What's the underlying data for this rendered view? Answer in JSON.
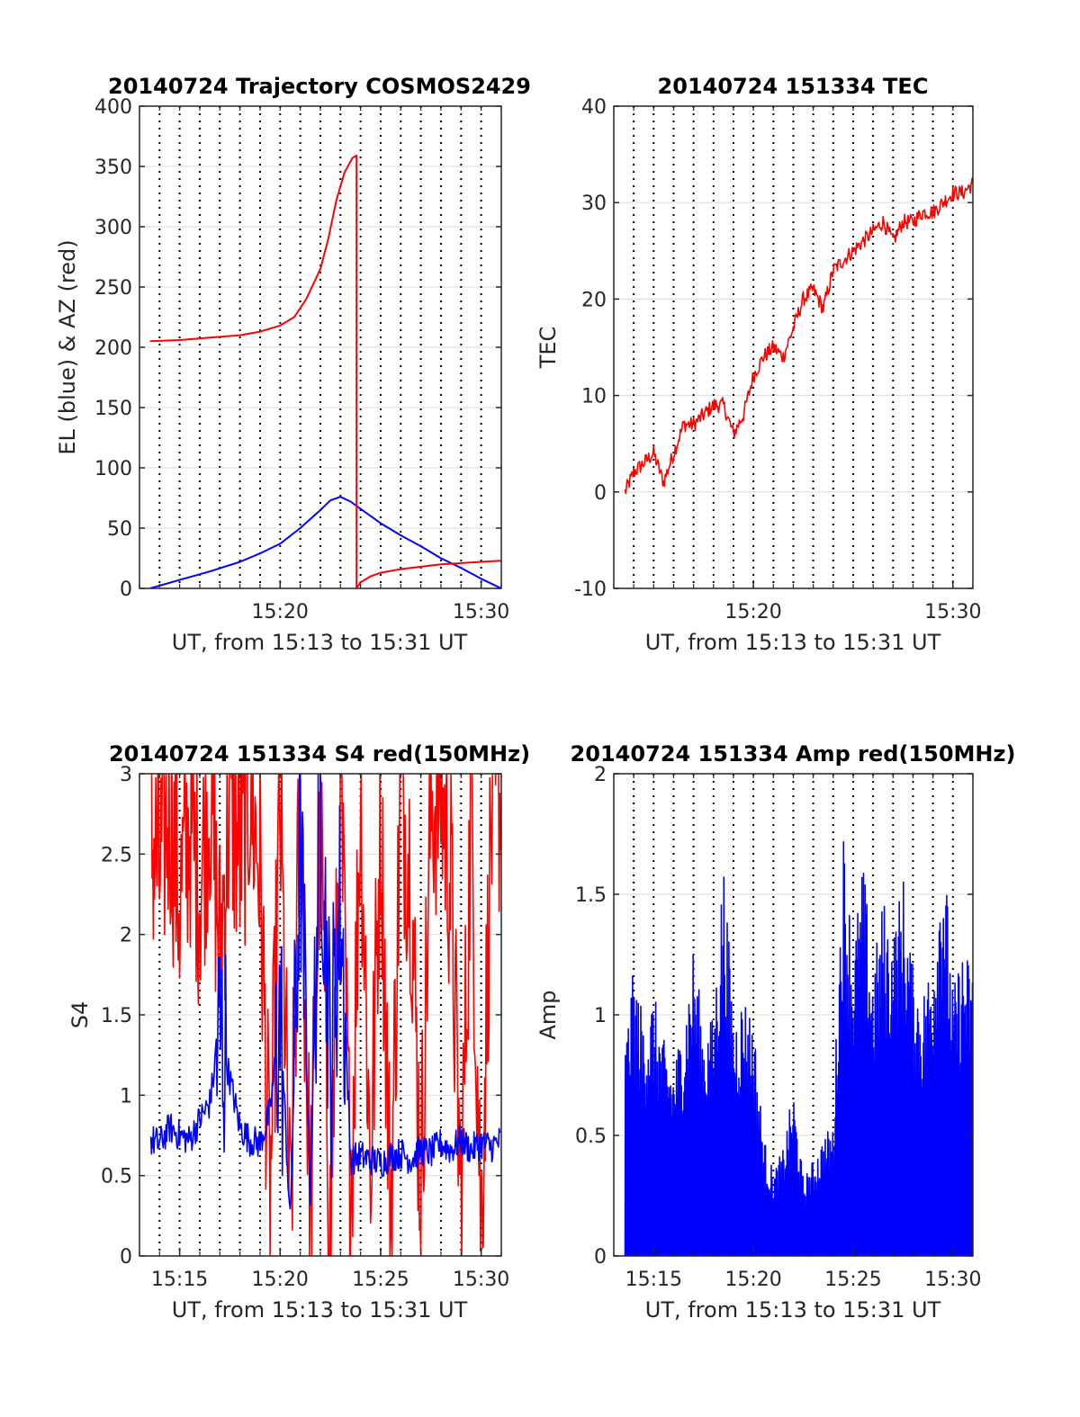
{
  "chart_data": [
    {
      "type": "line",
      "title": "20140724 Trajectory COSMOS2429",
      "xlabel": "UT, from 15:13 to 15:31 UT",
      "ylabel": "EL (blue) & AZ (red)",
      "xlim": [
        15.2167,
        15.5167
      ],
      "ylim": [
        0,
        400
      ],
      "yticks": [
        0,
        50,
        100,
        150,
        200,
        250,
        300,
        350,
        400
      ],
      "ytick_labels": [
        "0",
        "50",
        "100",
        "150",
        "200",
        "250",
        "300",
        "350",
        "400"
      ],
      "xticks": [
        15.3333,
        15.5
      ],
      "xtick_labels": [
        "15:20",
        "15:30"
      ],
      "grid": "dotted vertical lines every minute, light horizontal lines at y ticks",
      "series": [
        {
          "color": "#0000ff",
          "x": [
            15.2255,
            15.25,
            15.275,
            15.3,
            15.3167,
            15.3333,
            15.35,
            15.3667,
            15.375,
            15.3833,
            15.3917,
            15.4,
            15.4167,
            15.4333,
            15.45,
            15.4667,
            15.4833,
            15.5,
            15.5167
          ],
          "y": [
            0,
            7,
            14,
            22,
            29,
            37,
            50,
            65,
            73,
            76,
            72,
            66,
            54,
            44,
            35,
            25,
            17,
            8,
            0
          ]
        },
        {
          "color": "#ff0000",
          "x": [
            15.2255,
            15.25,
            15.275,
            15.3,
            15.3167,
            15.3333,
            15.345,
            15.355,
            15.3667,
            15.3733,
            15.38,
            15.3867,
            15.3933,
            15.3967,
            15.3967,
            15.4,
            15.4083,
            15.4167,
            15.4333,
            15.45,
            15.4667,
            15.4833,
            15.5,
            15.5167
          ],
          "y": [
            205,
            206,
            208,
            210,
            213,
            218,
            225,
            240,
            265,
            290,
            322,
            345,
            357,
            359,
            0,
            5,
            10,
            13,
            16,
            18,
            20,
            21,
            22,
            23
          ]
        }
      ]
    },
    {
      "type": "line",
      "title": "20140724 151334 TEC",
      "xlabel": "UT, from 15:13 to 15:31 UT",
      "ylabel": "TEC",
      "xlim": [
        15.2167,
        15.5167
      ],
      "ylim": [
        -10,
        40
      ],
      "yticks": [
        -10,
        0,
        10,
        20,
        30,
        40
      ],
      "ytick_labels": [
        "-10",
        "0",
        "10",
        "20",
        "30",
        "40"
      ],
      "xticks": [
        15.3333,
        15.5
      ],
      "xtick_labels": [
        "15:20",
        "15:30"
      ],
      "series": [
        {
          "color": "#ff0000",
          "x": [
            15.2261,
            15.2333,
            15.2417,
            15.25,
            15.2583,
            15.2667,
            15.275,
            15.2833,
            15.2917,
            15.3,
            15.3083,
            15.3167,
            15.325,
            15.3333,
            15.3417,
            15.35,
            15.3583,
            15.3667,
            15.375,
            15.3833,
            15.3917,
            15.4,
            15.4083,
            15.4167,
            15.425,
            15.4333,
            15.4417,
            15.45,
            15.4583,
            15.4667,
            15.475,
            15.4833,
            15.4917,
            15.5,
            15.5083,
            15.5167
          ],
          "y": [
            0,
            2,
            3,
            4,
            1,
            4,
            7,
            7,
            8,
            9,
            9,
            6,
            8,
            12,
            14,
            15,
            14,
            17,
            20,
            21,
            19,
            23,
            24,
            25,
            26,
            27,
            28,
            26,
            28,
            28,
            29,
            29,
            30,
            31,
            31,
            32
          ]
        }
      ]
    },
    {
      "type": "line",
      "title": "20140724 151334 S4 red(150MHz)",
      "xlabel": "UT, from 15:13 to 15:31 UT",
      "ylabel": "S4",
      "xlim": [
        15.2167,
        15.5167
      ],
      "ylim": [
        0,
        3
      ],
      "yticks": [
        0,
        0.5,
        1,
        1.5,
        2,
        2.5,
        3
      ],
      "ytick_labels": [
        "0",
        "0.5",
        "1",
        "1.5",
        "2",
        "2.5",
        "3"
      ],
      "xticks": [
        15.25,
        15.3333,
        15.4167,
        15.5
      ],
      "xtick_labels": [
        "15:15",
        "15:20",
        "15:25",
        "15:30"
      ],
      "series": [
        {
          "color": "#ff0000",
          "x": [
            15.2261,
            15.2333,
            15.2417,
            15.25,
            15.2583,
            15.2667,
            15.275,
            15.2833,
            15.2917,
            15.3,
            15.3083,
            15.3167,
            15.325,
            15.3333,
            15.3417,
            15.35,
            15.3583,
            15.3667,
            15.375,
            15.3833,
            15.3917,
            15.4,
            15.4083,
            15.4167,
            15.425,
            15.4333,
            15.4417,
            15.45,
            15.4583,
            15.4667,
            15.475,
            15.4833,
            15.4917,
            15.5,
            15.5083,
            15.5167
          ],
          "y": [
            2.6,
            2.4,
            2.8,
            2.2,
            2.7,
            2.3,
            2.9,
            1.9,
            2.8,
            2.5,
            2.9,
            2.4,
            0.3,
            2.8,
            0.1,
            2.9,
            0.2,
            2.7,
            0.1,
            2.9,
            0.3,
            2.9,
            0.5,
            2.8,
            0.2,
            2.9,
            2.4,
            0.4,
            2.8,
            2.9,
            2.3,
            0.3,
            2.8,
            0.2,
            2.7,
            2.9
          ]
        },
        {
          "color": "#0000ff",
          "x": [
            15.2261,
            15.2333,
            15.2417,
            15.25,
            15.2583,
            15.2667,
            15.275,
            15.2833,
            15.2917,
            15.3,
            15.3083,
            15.3167,
            15.325,
            15.3333,
            15.3417,
            15.35,
            15.3583,
            15.3667,
            15.375,
            15.3833,
            15.3917,
            15.4,
            15.4083,
            15.4167,
            15.425,
            15.4333,
            15.4417,
            15.45,
            15.4583,
            15.4667,
            15.475,
            15.4833,
            15.4917,
            15.5,
            15.5083,
            15.5167
          ],
          "y": [
            0.72,
            0.7,
            0.8,
            0.75,
            0.72,
            0.85,
            0.95,
            1.4,
            1.1,
            0.8,
            0.72,
            0.7,
            0.9,
            1.5,
            0.2,
            2.6,
            0.4,
            2.9,
            1.2,
            2.2,
            0.6,
            0.62,
            0.6,
            0.58,
            0.62,
            0.64,
            0.6,
            0.66,
            0.64,
            0.7,
            0.66,
            0.72,
            0.66,
            0.7,
            0.68,
            0.72
          ]
        }
      ]
    },
    {
      "type": "line",
      "title": "20140724 151334 Amp red(150MHz)",
      "xlabel": "UT, from 15:13 to 15:31 UT",
      "ylabel": "Amp",
      "xlim": [
        15.2167,
        15.5167
      ],
      "ylim": [
        0,
        2
      ],
      "yticks": [
        0,
        0.5,
        1,
        1.5,
        2
      ],
      "ytick_labels": [
        "0",
        "0.5",
        "1",
        "1.5",
        "2"
      ],
      "xticks": [
        15.25,
        15.3333,
        15.4167,
        15.5
      ],
      "xtick_labels": [
        "15:15",
        "15:20",
        "15:25",
        "15:30"
      ],
      "series": [
        {
          "color": "#0000ff",
          "x": [
            15.2261,
            15.2333,
            15.2417,
            15.25,
            15.2583,
            15.2667,
            15.275,
            15.2833,
            15.2917,
            15.3,
            15.3083,
            15.3167,
            15.325,
            15.3333,
            15.3417,
            15.35,
            15.3583,
            15.3667,
            15.375,
            15.3833,
            15.3917,
            15.4,
            15.4083,
            15.4167,
            15.425,
            15.4333,
            15.4417,
            15.45,
            15.4583,
            15.4667,
            15.475,
            15.4833,
            15.4917,
            15.5,
            15.5083,
            15.5167
          ],
          "y": [
            0.9,
            1.2,
            1.0,
            1.1,
            0.9,
            0.8,
            1.0,
            1.3,
            0.95,
            1.0,
            1.68,
            1.0,
            1.1,
            1.0,
            0.5,
            0.35,
            0.45,
            0.7,
            0.32,
            0.4,
            0.5,
            0.55,
            1.8,
            1.3,
            1.65,
            1.2,
            1.5,
            1.35,
            1.6,
            1.2,
            1.1,
            1.3,
            1.8,
            1.1,
            1.3,
            1.2
          ],
          "y_low": [
            0,
            0,
            0,
            0,
            0,
            0,
            0,
            0,
            0,
            0,
            0,
            0,
            0,
            0,
            0,
            0,
            0,
            0,
            0,
            0,
            0,
            0,
            0,
            0,
            0,
            0,
            0,
            0,
            0,
            0,
            0,
            0,
            0,
            0,
            0,
            0
          ]
        }
      ]
    }
  ]
}
